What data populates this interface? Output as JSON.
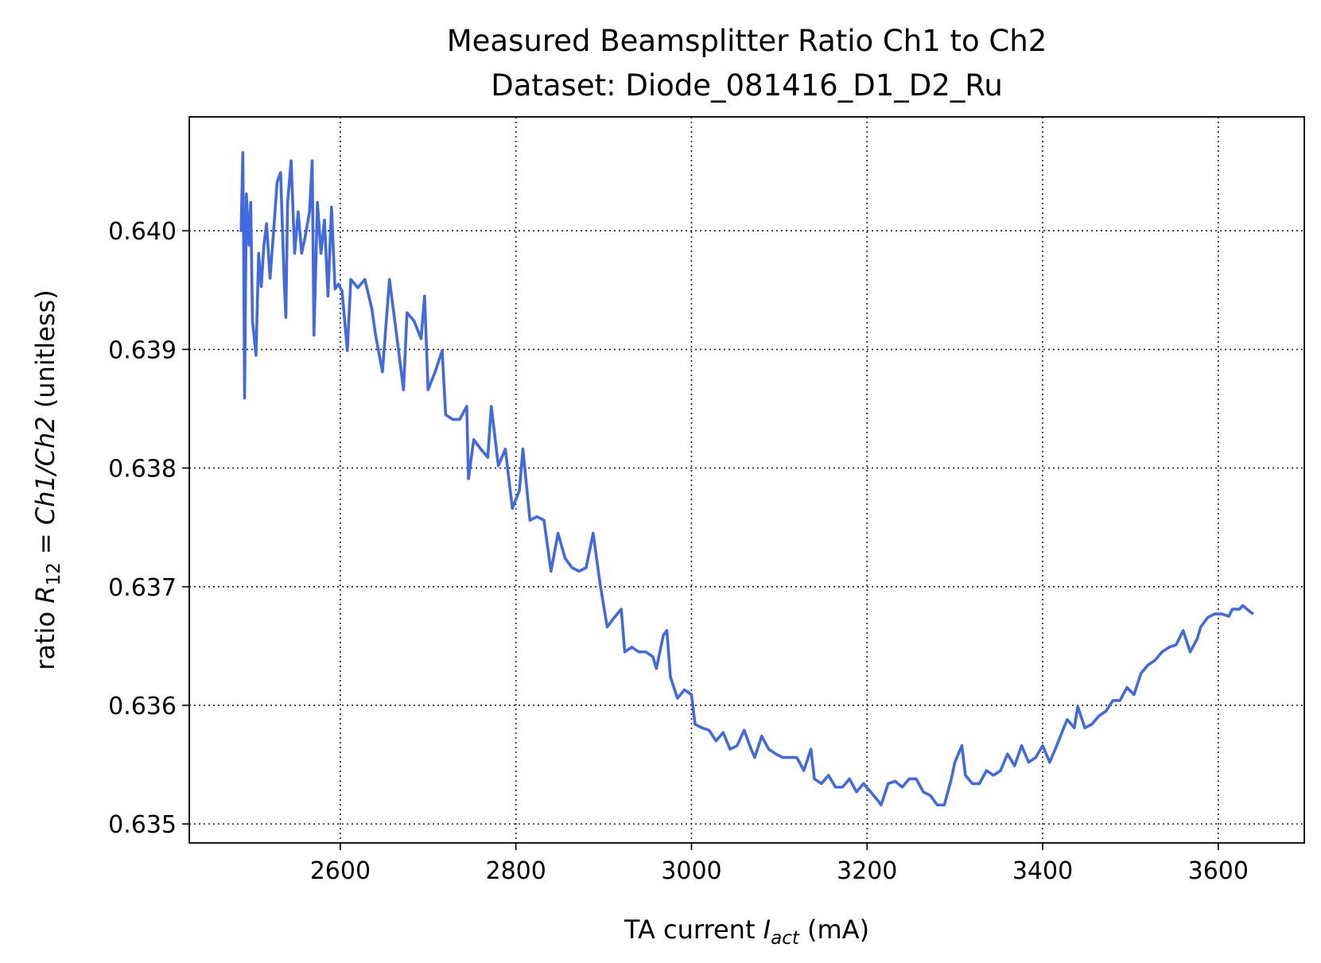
{
  "chart_data": {
    "type": "line",
    "title": "Measured Beamsplitter Ratio Ch1 to Ch2",
    "subtitle": "Dataset: Diode_081416_D1_D2_Ru",
    "xlabel": [
      "TA current ",
      "I",
      "act",
      " (mA)"
    ],
    "ylabel": [
      "ratio ",
      "R",
      "12",
      " = ",
      "Ch1/Ch2",
      " (unitless)"
    ],
    "color": "#4169e1",
    "grid": true,
    "xlim": [
      2428,
      3698
    ],
    "ylim": [
      0.63484,
      0.64096
    ],
    "xticks": [
      2600,
      2800,
      3000,
      3200,
      3400,
      3600
    ],
    "yticks": [
      0.635,
      0.636,
      0.637,
      0.638,
      0.639,
      {
        "value": 0.64,
        "label": "0.640"
      }
    ],
    "x": [
      2487,
      2489,
      2490,
      2491,
      2493,
      2496,
      2498,
      2500,
      2504,
      2507,
      2510,
      2513,
      2516,
      2520,
      2525,
      2528,
      2532,
      2536,
      2538,
      2540,
      2544,
      2548,
      2552,
      2556,
      2560,
      2565,
      2568,
      2570,
      2574,
      2578,
      2582,
      2586,
      2590,
      2594,
      2598,
      2602,
      2608,
      2612,
      2620,
      2628,
      2636,
      2640,
      2648,
      2656,
      2664,
      2672,
      2676,
      2684,
      2692,
      2696,
      2700,
      2708,
      2716,
      2720,
      2728,
      2736,
      2744,
      2746,
      2752,
      2760,
      2768,
      2772,
      2780,
      2788,
      2796,
      2804,
      2808,
      2816,
      2824,
      2832,
      2840,
      2848,
      2856,
      2864,
      2872,
      2880,
      2888,
      2896,
      2904,
      2912,
      2920,
      2924,
      2932,
      2940,
      2948,
      2956,
      2960,
      2968,
      2972,
      2976,
      2984,
      2992,
      3000,
      3004,
      3012,
      3020,
      3028,
      3036,
      3044,
      3052,
      3060,
      3068,
      3072,
      3080,
      3088,
      3096,
      3104,
      3112,
      3120,
      3128,
      3136,
      3140,
      3148,
      3156,
      3164,
      3172,
      3180,
      3188,
      3196,
      3204,
      3212,
      3216,
      3224,
      3232,
      3240,
      3248,
      3256,
      3264,
      3272,
      3280,
      3288,
      3296,
      3300,
      3308,
      3312,
      3320,
      3328,
      3336,
      3344,
      3352,
      3360,
      3368,
      3376,
      3384,
      3392,
      3400,
      3408,
      3416,
      3424,
      3428,
      3436,
      3440,
      3448,
      3456,
      3464,
      3472,
      3480,
      3488,
      3496,
      3504,
      3512,
      3520,
      3528,
      3536,
      3544,
      3552,
      3560,
      3568,
      3576,
      3580,
      3588,
      3596,
      3604,
      3612,
      3616,
      3624,
      3628,
      3636,
      3640
    ],
    "values": [
      0.63999,
      0.64066,
      0.63981,
      0.63859,
      0.64031,
      0.63988,
      0.64024,
      0.63924,
      0.63895,
      0.63981,
      0.63953,
      0.63988,
      0.64006,
      0.6396,
      0.64009,
      0.64041,
      0.64049,
      0.6396,
      0.63927,
      0.64024,
      0.64059,
      0.63981,
      0.64016,
      0.63981,
      0.63995,
      0.64016,
      0.64059,
      0.63912,
      0.64024,
      0.63981,
      0.64009,
      0.63945,
      0.6402,
      0.63951,
      0.63955,
      0.63949,
      0.63899,
      0.63959,
      0.63952,
      0.63959,
      0.63934,
      0.63913,
      0.63881,
      0.63959,
      0.63913,
      0.63866,
      0.63931,
      0.63924,
      0.63909,
      0.63945,
      0.63866,
      0.63881,
      0.63899,
      0.63845,
      0.63841,
      0.63841,
      0.63852,
      0.63791,
      0.63824,
      0.63816,
      0.63809,
      0.63852,
      0.63802,
      0.63816,
      0.63766,
      0.63781,
      0.63816,
      0.63756,
      0.63759,
      0.63756,
      0.63713,
      0.63745,
      0.63724,
      0.63716,
      0.63713,
      0.63716,
      0.63745,
      0.63702,
      0.63666,
      0.63674,
      0.63681,
      0.63645,
      0.63649,
      0.63645,
      0.63645,
      0.63641,
      0.63631,
      0.63659,
      0.63663,
      0.63624,
      0.63606,
      0.63613,
      0.63609,
      0.63584,
      0.63581,
      0.63579,
      0.6357,
      0.63577,
      0.63563,
      0.63566,
      0.63579,
      0.63563,
      0.63556,
      0.63574,
      0.63563,
      0.63559,
      0.63556,
      0.63556,
      0.63556,
      0.63545,
      0.63563,
      0.63538,
      0.63534,
      0.63541,
      0.63531,
      0.63531,
      0.63538,
      0.63527,
      0.63534,
      0.63527,
      0.6352,
      0.63516,
      0.63534,
      0.63536,
      0.63531,
      0.63538,
      0.63538,
      0.63527,
      0.63524,
      0.63516,
      0.63516,
      0.63538,
      0.63552,
      0.63566,
      0.63541,
      0.63534,
      0.63534,
      0.63545,
      0.63541,
      0.63545,
      0.63559,
      0.63549,
      0.63566,
      0.63552,
      0.63556,
      0.63566,
      0.63552,
      0.63566,
      0.63581,
      0.63588,
      0.63581,
      0.63599,
      0.63581,
      0.63584,
      0.63591,
      0.63595,
      0.63604,
      0.63604,
      0.63615,
      0.63609,
      0.63627,
      0.63634,
      0.63638,
      0.63645,
      0.63649,
      0.63651,
      0.63663,
      0.63645,
      0.63656,
      0.63666,
      0.63674,
      0.63677,
      0.63677,
      0.63675,
      0.63681,
      0.63681,
      0.63684,
      0.63679,
      0.63677
    ]
  }
}
